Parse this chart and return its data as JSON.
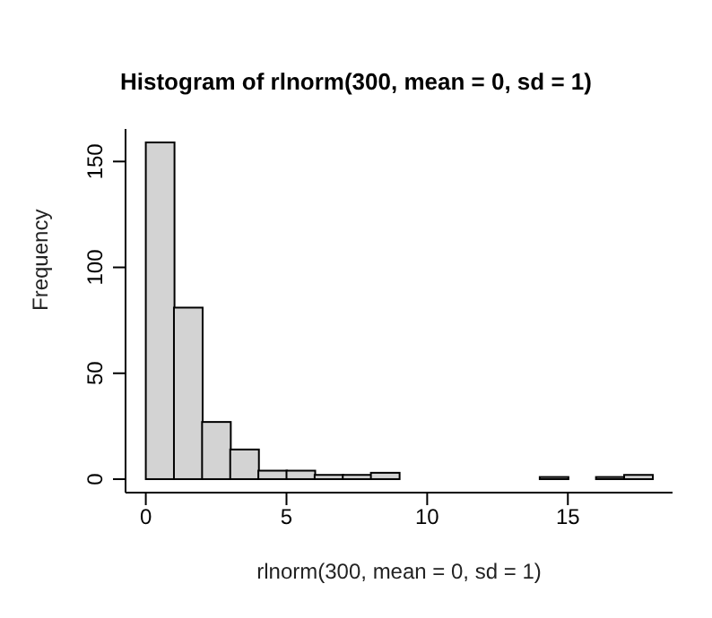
{
  "chart_data": {
    "type": "histogram",
    "title": "Histogram of rlnorm(300, mean = 0, sd = 1)",
    "xlabel": "rlnorm(300, mean = 0, sd = 1)",
    "ylabel": "Frequency",
    "bins": [
      0,
      1,
      2,
      3,
      4,
      5,
      6,
      7,
      8,
      9,
      10,
      11,
      12,
      13,
      14,
      15,
      16,
      17,
      18
    ],
    "values": [
      159,
      81,
      27,
      14,
      4,
      4,
      2,
      2,
      3,
      0,
      0,
      0,
      0,
      0,
      1,
      0,
      1,
      2
    ],
    "color": "#d3d3d3",
    "xlim": [
      -0.72,
      18.72
    ],
    "ylim": [
      -6.36,
      165.36
    ],
    "xticks": [
      0,
      5,
      10,
      15
    ],
    "yticks": [
      0,
      50,
      100,
      150
    ],
    "grid": false,
    "legend": false
  }
}
